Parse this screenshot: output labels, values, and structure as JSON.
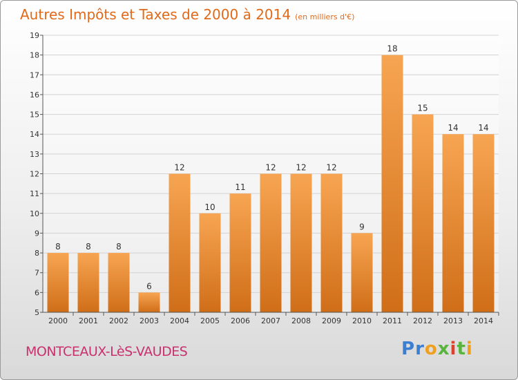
{
  "header": {
    "title": "Autres Impôts et Taxes de 2000 à 2014",
    "unit": "(en milliers d'€)"
  },
  "footer": {
    "place": "MONTCEAUX-LèS-VAUDES",
    "logo": "Proxiti"
  },
  "colors": {
    "bar_light": "#f7a552",
    "bar_dark": "#d06e18",
    "title": "#e06a1a",
    "place": "#c8306e"
  },
  "chart_data": {
    "type": "bar",
    "categories": [
      "2000",
      "2001",
      "2002",
      "2003",
      "2004",
      "2005",
      "2006",
      "2007",
      "2008",
      "2009",
      "2010",
      "2011",
      "2012",
      "2013",
      "2014"
    ],
    "values": [
      8,
      8,
      8,
      6,
      12,
      10,
      11,
      12,
      12,
      12,
      9,
      18,
      15,
      14,
      14
    ],
    "title": "Autres Impôts et Taxes de 2000 à 2014",
    "unit": "(en milliers d'€)",
    "xlabel": "",
    "ylabel": "",
    "ylim": [
      5,
      19
    ],
    "yticks": [
      5,
      6,
      7,
      8,
      9,
      10,
      11,
      12,
      13,
      14,
      15,
      16,
      17,
      18,
      19
    ],
    "grid": true,
    "data_labels": true
  }
}
